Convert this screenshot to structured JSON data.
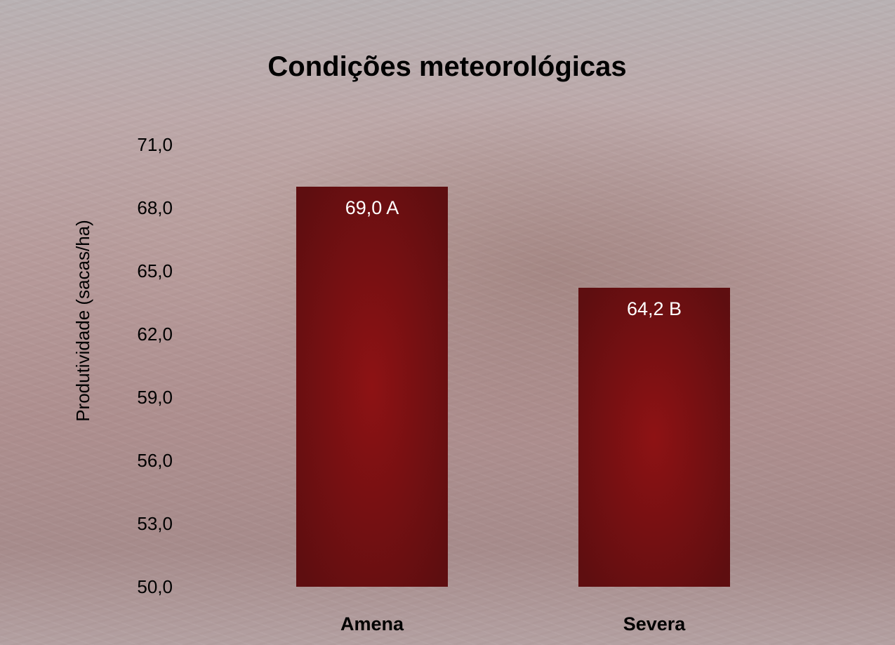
{
  "chart_data": {
    "type": "bar",
    "title": "Condições meteorológicas",
    "xlabel": "",
    "ylabel": "Produtividade (sacas/ha)",
    "ylim": [
      50,
      71
    ],
    "yticks": [
      "50,0",
      "53,0",
      "56,0",
      "59,0",
      "62,0",
      "65,0",
      "68,0",
      "71,0"
    ],
    "ytick_values": [
      50,
      53,
      56,
      59,
      62,
      65,
      68,
      71
    ],
    "categories": [
      "Amena",
      "Severa"
    ],
    "values": [
      69.0,
      64.2
    ],
    "data_labels": [
      "69,0 A",
      "64,2 B"
    ],
    "grid": false,
    "legend": "none",
    "colors": {
      "bar_center": "#8e1214",
      "bar_edge": "#5e0e10"
    }
  }
}
